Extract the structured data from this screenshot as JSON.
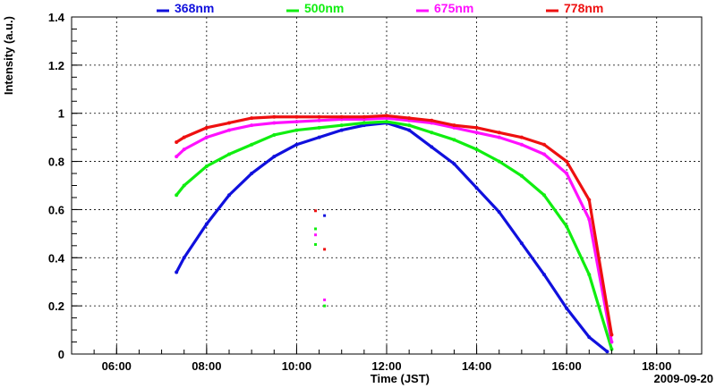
{
  "chart_data": {
    "type": "scatter",
    "title": "",
    "xlabel": "Time (JST)",
    "ylabel": "Intensity (a.u.)",
    "date_label": "2009-09-20",
    "x_unit": "hours",
    "xlim": [
      5.0,
      19.0
    ],
    "ylim": [
      0,
      1.4
    ],
    "x_ticks": [
      6,
      8,
      10,
      12,
      14,
      16,
      18
    ],
    "x_tick_labels": [
      "06:00",
      "08:00",
      "10:00",
      "12:00",
      "14:00",
      "16:00",
      "18:00"
    ],
    "y_ticks": [
      0,
      0.2,
      0.4,
      0.6,
      0.8,
      1.0,
      1.2,
      1.4
    ],
    "y_tick_labels": [
      "0",
      "0.2",
      "0.4",
      "0.6",
      "0.8",
      "1",
      "1.2",
      "1.4"
    ],
    "grid": true,
    "legend_position": "top",
    "series": [
      {
        "name": "368nm",
        "color": "#1010dd",
        "x": [
          7.33,
          7.5,
          8.0,
          8.5,
          9.0,
          9.5,
          10.0,
          10.5,
          11.0,
          11.5,
          12.0,
          12.5,
          13.0,
          13.5,
          14.0,
          14.5,
          15.0,
          15.5,
          16.0,
          16.5,
          16.9
        ],
        "values": [
          0.34,
          0.4,
          0.54,
          0.66,
          0.75,
          0.82,
          0.87,
          0.9,
          0.93,
          0.95,
          0.96,
          0.93,
          0.86,
          0.79,
          0.69,
          0.59,
          0.46,
          0.33,
          0.19,
          0.07,
          0.01
        ]
      },
      {
        "name": "500nm",
        "color": "#10ee10",
        "x": [
          7.33,
          7.5,
          8.0,
          8.5,
          9.0,
          9.5,
          10.0,
          10.5,
          11.0,
          11.5,
          12.0,
          12.5,
          13.0,
          13.5,
          14.0,
          14.5,
          15.0,
          15.5,
          16.0,
          16.5,
          17.0
        ],
        "values": [
          0.66,
          0.7,
          0.78,
          0.83,
          0.87,
          0.91,
          0.93,
          0.94,
          0.95,
          0.96,
          0.965,
          0.95,
          0.92,
          0.89,
          0.85,
          0.8,
          0.74,
          0.66,
          0.53,
          0.33,
          0.02
        ]
      },
      {
        "name": "675nm",
        "color": "#ff10ff",
        "x": [
          7.33,
          7.5,
          8.0,
          8.5,
          9.0,
          9.5,
          10.0,
          10.5,
          11.0,
          11.5,
          12.0,
          12.5,
          13.0,
          13.5,
          14.0,
          14.5,
          15.0,
          15.5,
          16.0,
          16.5,
          17.0
        ],
        "values": [
          0.82,
          0.85,
          0.9,
          0.93,
          0.95,
          0.96,
          0.965,
          0.97,
          0.975,
          0.975,
          0.98,
          0.97,
          0.96,
          0.94,
          0.92,
          0.9,
          0.87,
          0.83,
          0.75,
          0.56,
          0.05
        ]
      },
      {
        "name": "778nm",
        "color": "#ee1010",
        "x": [
          7.33,
          7.5,
          8.0,
          8.5,
          9.0,
          9.5,
          10.0,
          10.5,
          11.0,
          11.5,
          12.0,
          12.5,
          13.0,
          13.5,
          14.0,
          14.5,
          15.0,
          15.5,
          16.0,
          16.5,
          17.0
        ],
        "values": [
          0.88,
          0.9,
          0.94,
          0.96,
          0.98,
          0.985,
          0.985,
          0.985,
          0.985,
          0.985,
          0.99,
          0.98,
          0.97,
          0.95,
          0.94,
          0.92,
          0.9,
          0.87,
          0.8,
          0.64,
          0.08
        ]
      }
    ],
    "outliers": [
      {
        "series": "778nm",
        "x": 10.42,
        "y": 0.595
      },
      {
        "series": "368nm",
        "x": 10.62,
        "y": 0.575
      },
      {
        "series": "500nm",
        "x": 10.42,
        "y": 0.52
      },
      {
        "series": "675nm",
        "x": 10.42,
        "y": 0.495
      },
      {
        "series": "500nm",
        "x": 10.42,
        "y": 0.455
      },
      {
        "series": "778nm",
        "x": 10.62,
        "y": 0.435
      },
      {
        "series": "675nm",
        "x": 10.62,
        "y": 0.225
      },
      {
        "series": "500nm",
        "x": 10.62,
        "y": 0.2
      }
    ]
  }
}
